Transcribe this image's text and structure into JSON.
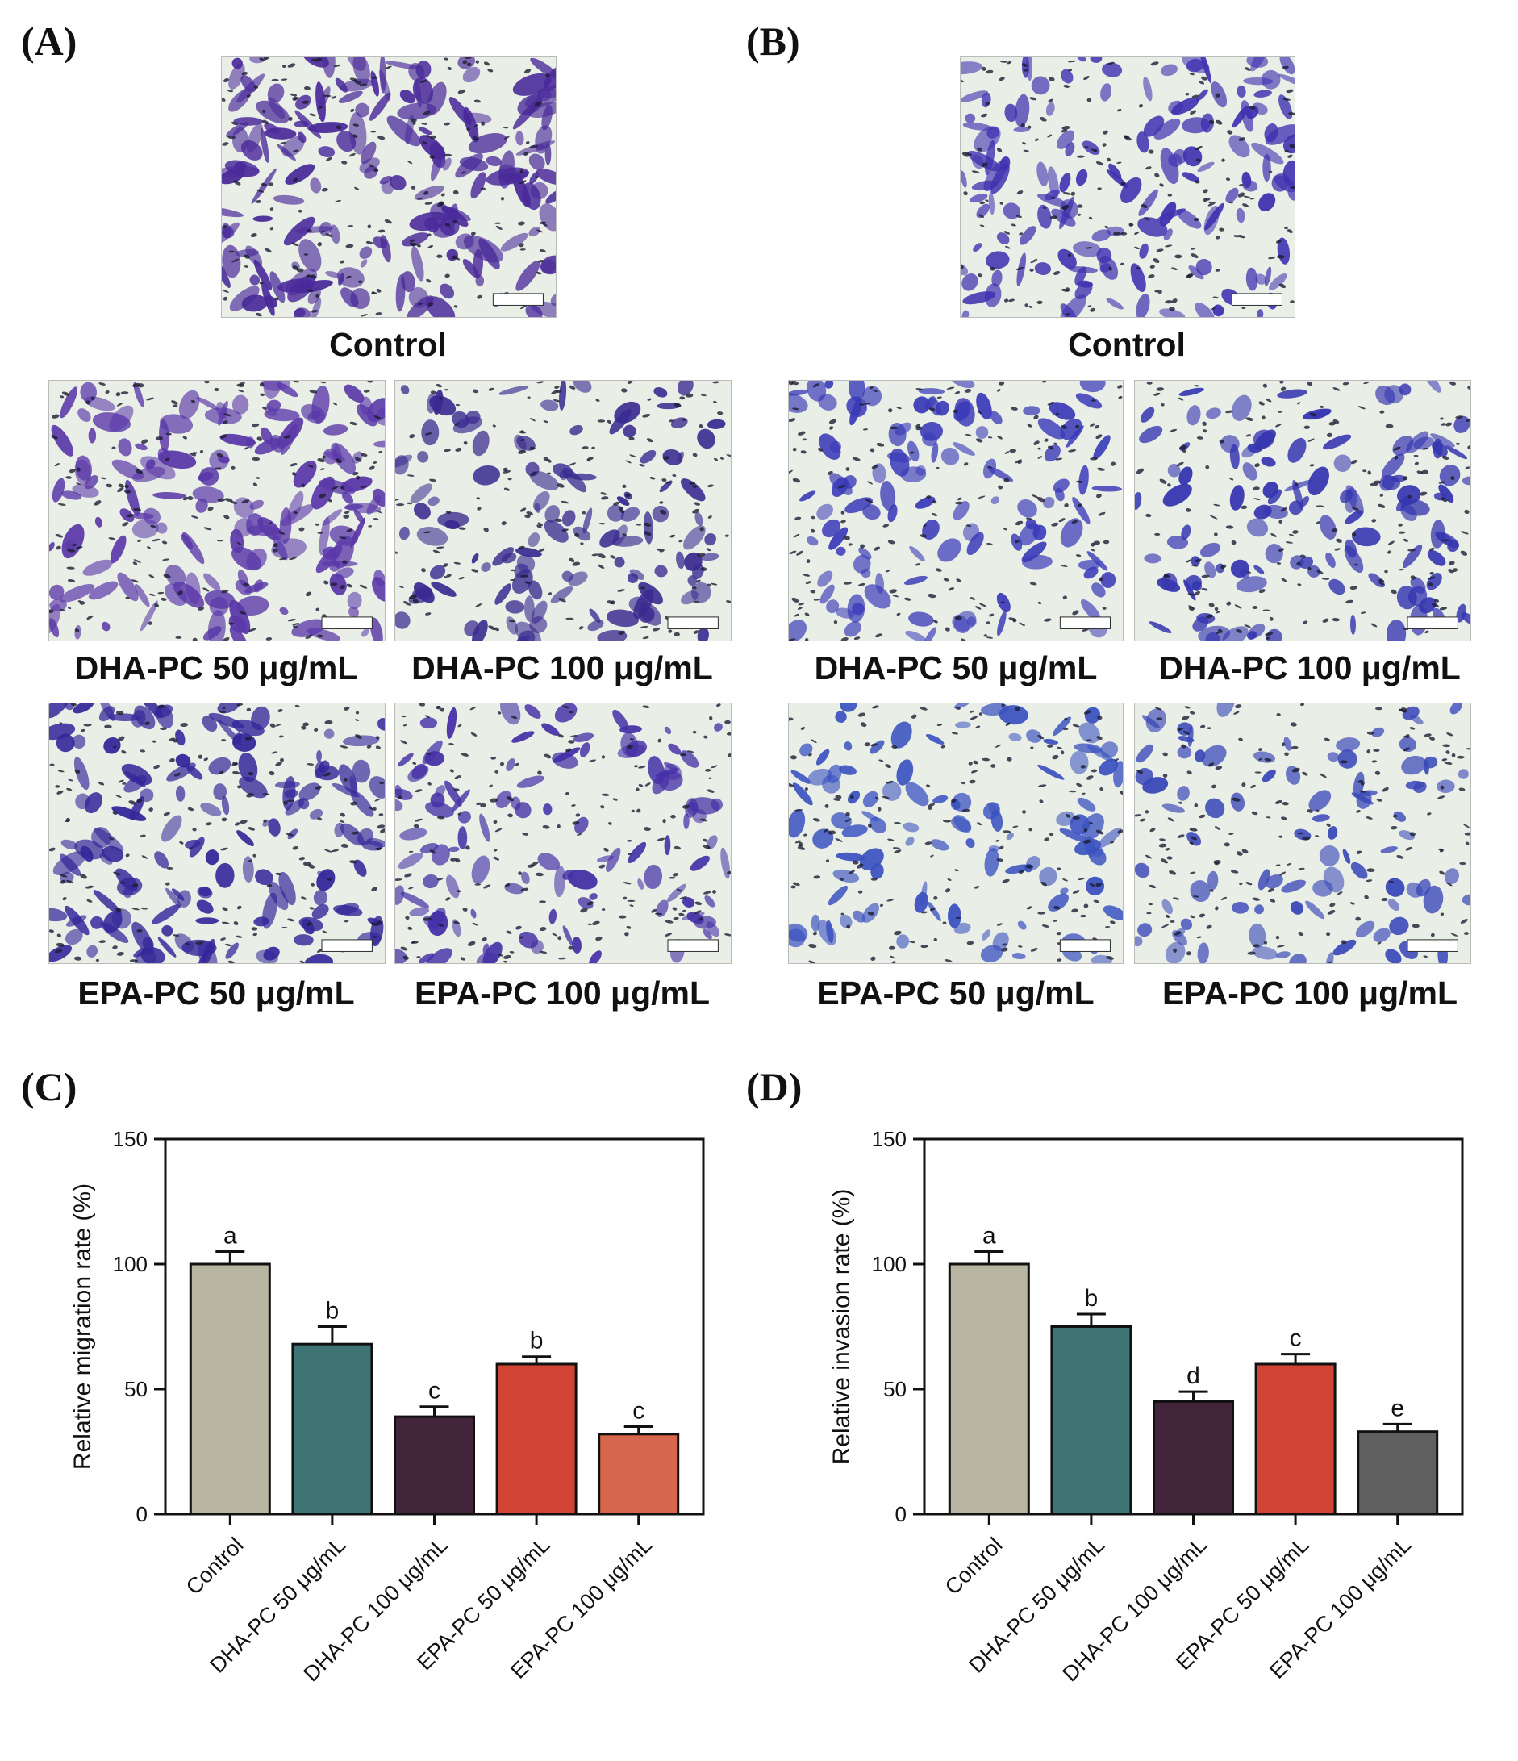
{
  "figure": {
    "panels": {
      "A": "(A)",
      "B": "(B)",
      "C": "(C)",
      "D": "(D)"
    },
    "images_A": [
      {
        "id": "a-control",
        "caption": "Control",
        "density": 1.0,
        "tint": "#4a2a9a"
      },
      {
        "id": "a-dha50",
        "caption": "DHA-PC 50 μg/mL",
        "density": 0.8,
        "tint": "#5a38a8"
      },
      {
        "id": "a-dha100",
        "caption": "DHA-PC 100 μg/mL",
        "density": 0.55,
        "tint": "#3a2a90"
      },
      {
        "id": "a-epa50",
        "caption": "EPA-PC 50 μg/mL",
        "density": 0.75,
        "tint": "#34279a"
      },
      {
        "id": "a-epa100",
        "caption": "EPA-PC 100 μg/mL",
        "density": 0.5,
        "tint": "#4530a6"
      }
    ],
    "images_B": [
      {
        "id": "b-control",
        "caption": "Control",
        "density": 0.75,
        "tint": "#3f32b0"
      },
      {
        "id": "b-dha50",
        "caption": "DHA-PC 50 μg/mL",
        "density": 0.5,
        "tint": "#3a3ab8"
      },
      {
        "id": "b-dha100",
        "caption": "DHA-PC 100 μg/mL",
        "density": 0.55,
        "tint": "#3535b0"
      },
      {
        "id": "b-epa50",
        "caption": "EPA-PC 50 μg/mL",
        "density": 0.45,
        "tint": "#3a52c0"
      },
      {
        "id": "b-epa100",
        "caption": "EPA-PC 100 μg/mL",
        "density": 0.35,
        "tint": "#3a48b8"
      }
    ]
  },
  "chart_data": [
    {
      "id": "C",
      "type": "bar",
      "categories": [
        "Control",
        "DHA-PC 50 μg/mL",
        "DHA-PC 100 μg/mL",
        "EPA-PC 50 μg/mL",
        "EPA-PC 100 μg/mL"
      ],
      "values": [
        100,
        68,
        39,
        60,
        32
      ],
      "errors": [
        5,
        7,
        4,
        3,
        3
      ],
      "letters": [
        "a",
        "b",
        "c",
        "b",
        "c"
      ],
      "colors": [
        "#b8b6a3",
        "#3e7474",
        "#42253a",
        "#cf4432",
        "#d6674c"
      ],
      "ylabel": "Relative migration rate (%)",
      "ylim": [
        0,
        150
      ],
      "yticks": [
        "0",
        "50",
        "100",
        "150"
      ]
    },
    {
      "id": "D",
      "type": "bar",
      "categories": [
        "Control",
        "DHA-PC 50 μg/mL",
        "DHA-PC 100 μg/mL",
        "EPA-PC 50 μg/mL",
        "EPA-PC 100 μg/mL"
      ],
      "values": [
        100,
        75,
        45,
        60,
        33
      ],
      "errors": [
        5,
        5,
        4,
        4,
        3
      ],
      "letters": [
        "a",
        "b",
        "d",
        "c",
        "e"
      ],
      "colors": [
        "#b8b6a3",
        "#3e7474",
        "#42253a",
        "#cf4432",
        "#5f5f5f"
      ],
      "ylabel": "Relative invasion rate (%)",
      "ylim": [
        0,
        150
      ],
      "yticks": [
        "0",
        "50",
        "100",
        "150"
      ]
    }
  ]
}
